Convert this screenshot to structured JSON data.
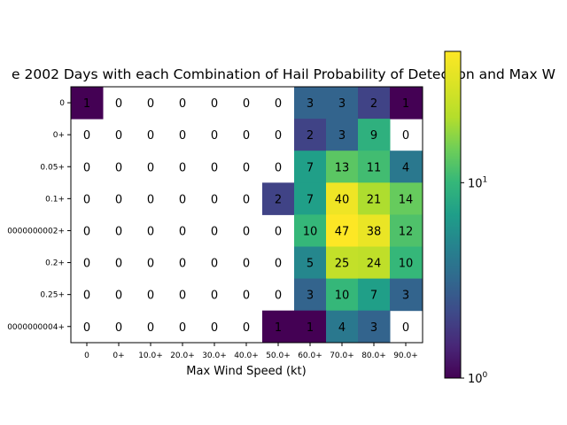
{
  "chart_data": {
    "type": "heatmap",
    "title": "e 2002 Days with each Combination of Hail Probability of Detection and Max W",
    "xlabel": "Max Wind Speed (kt)",
    "ylabel": "",
    "x_categories": [
      "0",
      "0+",
      "10.0+",
      "20.0+",
      "30.0+",
      "40.0+",
      "50.0+",
      "60.0+",
      "70.0+",
      "80.0+",
      "90.0+"
    ],
    "y_categories": [
      "0",
      "0+",
      "0.05+",
      "0.1+",
      "0000000002+",
      "0.2+",
      "0.25+",
      "0000000004+"
    ],
    "values": [
      [
        1,
        0,
        0,
        0,
        0,
        0,
        0,
        3,
        3,
        2,
        1
      ],
      [
        0,
        0,
        0,
        0,
        0,
        0,
        0,
        2,
        3,
        9,
        0
      ],
      [
        0,
        0,
        0,
        0,
        0,
        0,
        0,
        7,
        13,
        11,
        4
      ],
      [
        0,
        0,
        0,
        0,
        0,
        0,
        2,
        7,
        40,
        21,
        14
      ],
      [
        0,
        0,
        0,
        0,
        0,
        0,
        0,
        10,
        47,
        38,
        12
      ],
      [
        0,
        0,
        0,
        0,
        0,
        0,
        0,
        5,
        25,
        24,
        10
      ],
      [
        0,
        0,
        0,
        0,
        0,
        0,
        0,
        3,
        10,
        7,
        3
      ],
      [
        0,
        0,
        0,
        0,
        0,
        0,
        1,
        1,
        4,
        3,
        0
      ]
    ],
    "colorbar": {
      "scale": "log",
      "range": [
        1,
        47
      ],
      "colormap": "viridis",
      "tick_labels": [
        {
          "base": "10",
          "exp": "0",
          "value": 1
        },
        {
          "base": "10",
          "exp": "1",
          "value": 10
        }
      ]
    }
  }
}
